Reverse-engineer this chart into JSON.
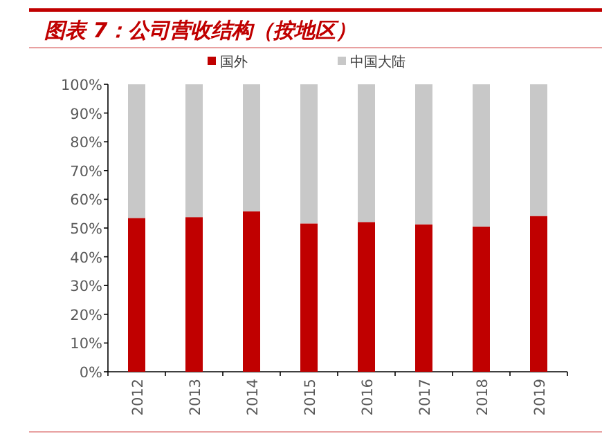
{
  "chart_data": {
    "type": "bar",
    "title": "图表 7：公司营收结构（按地区）",
    "stacked": true,
    "legend": "top",
    "categories": [
      "2012",
      "2013",
      "2014",
      "2015",
      "2016",
      "2017",
      "2018",
      "2019"
    ],
    "series": [
      {
        "name": "国外",
        "color": "#c00000",
        "values": [
          53.5,
          53.8,
          55.8,
          51.6,
          52.1,
          51.3,
          50.5,
          54.2
        ]
      },
      {
        "name": "中国大陆",
        "color": "#c8c8c8",
        "values": [
          46.5,
          46.2,
          44.2,
          48.4,
          47.9,
          48.7,
          49.5,
          45.8
        ]
      }
    ],
    "ylim": [
      0,
      100
    ],
    "yticks": [
      {
        "value": 0,
        "label": "0%"
      },
      {
        "value": 10,
        "label": "10%"
      },
      {
        "value": 20,
        "label": "20%"
      },
      {
        "value": 30,
        "label": "30%"
      },
      {
        "value": 40,
        "label": "40%"
      },
      {
        "value": 50,
        "label": "50%"
      },
      {
        "value": 60,
        "label": "60%"
      },
      {
        "value": 70,
        "label": "70%"
      },
      {
        "value": 80,
        "label": "80%"
      },
      {
        "value": 90,
        "label": "90%"
      },
      {
        "value": 100,
        "label": "100%"
      }
    ]
  }
}
